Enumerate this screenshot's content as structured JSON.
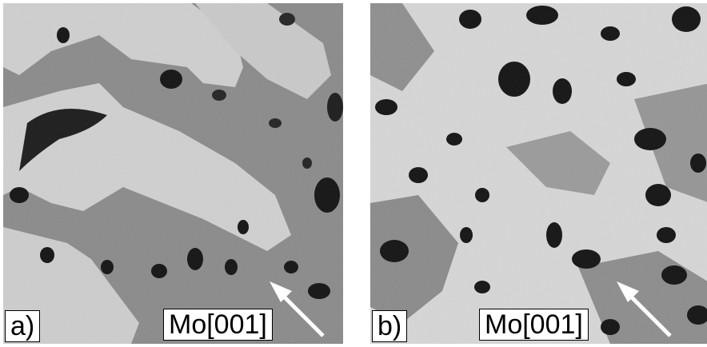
{
  "panels": [
    {
      "label": "a)",
      "direction": "Mo[001]"
    },
    {
      "label": "b)",
      "direction": "Mo[001]"
    }
  ],
  "colors": {
    "terrace_light": "#d4d4d4",
    "terrace_mid": "#8c8c8c",
    "hole_dark": "#111111",
    "arrow": "#ffffff"
  },
  "icons": [
    "arrow-icon"
  ]
}
